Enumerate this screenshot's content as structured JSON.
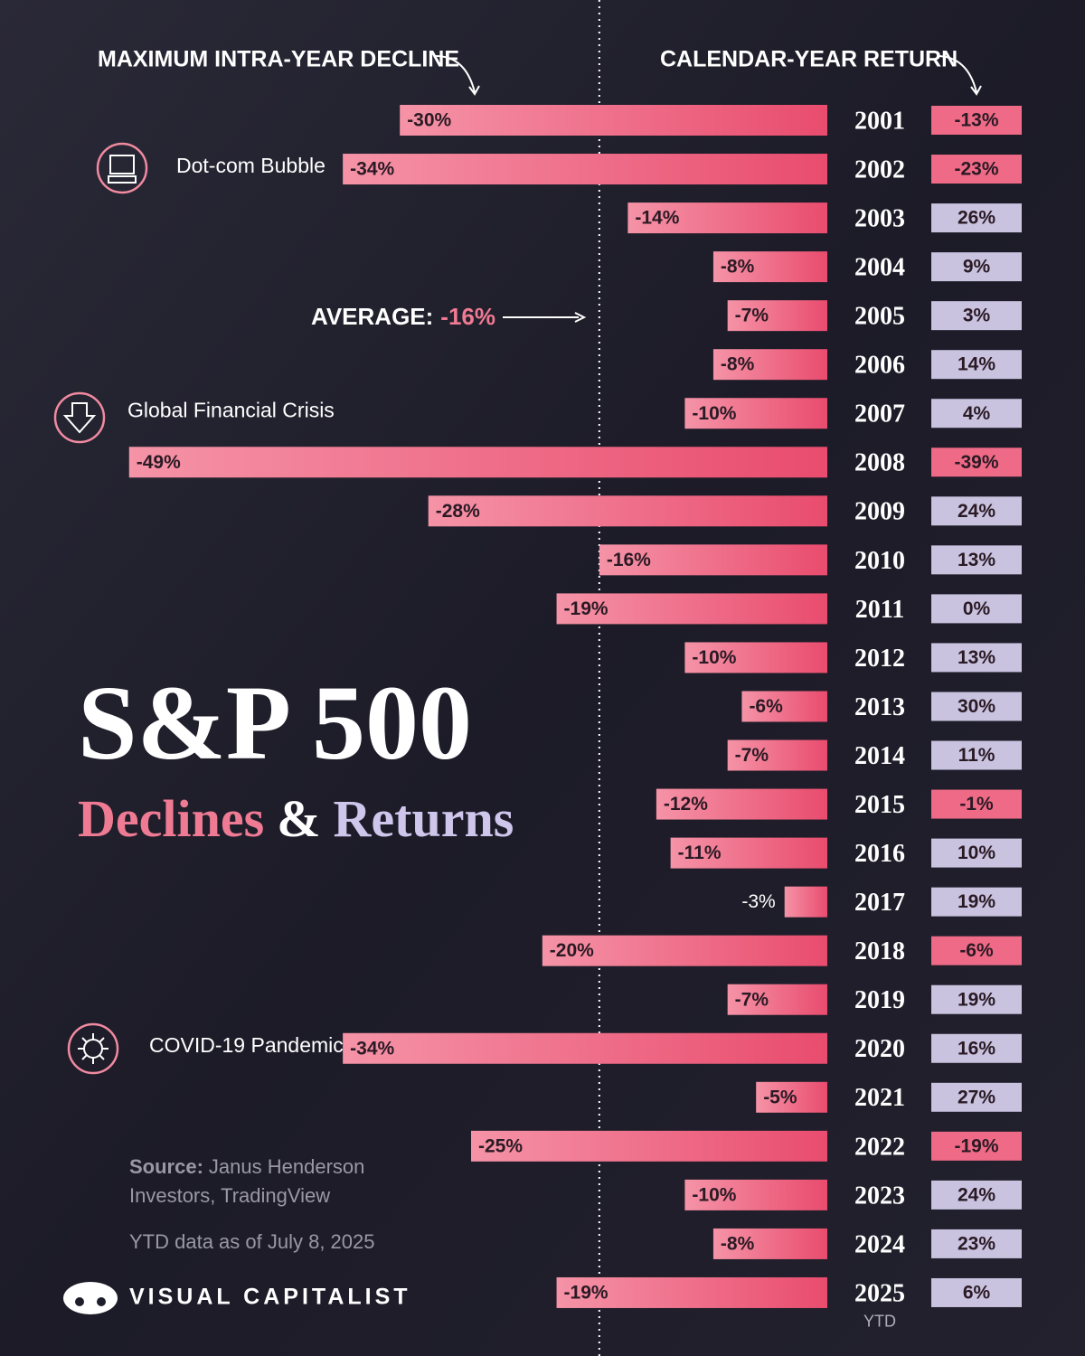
{
  "chart_data": {
    "type": "bar",
    "title": "S&P 500",
    "subtitle_parts": [
      "Declines",
      "&",
      "Returns"
    ],
    "decline_header": "MAXIMUM INTRA-YEAR DECLINE",
    "return_header": "CALENDAR-YEAR RETURN",
    "categories": [
      "2001",
      "2002",
      "2003",
      "2004",
      "2005",
      "2006",
      "2007",
      "2008",
      "2009",
      "2010",
      "2011",
      "2012",
      "2013",
      "2014",
      "2015",
      "2016",
      "2017",
      "2018",
      "2019",
      "2020",
      "2021",
      "2022",
      "2023",
      "2024",
      "2025"
    ],
    "last_category_note": "YTD",
    "xlim": [
      -50,
      0
    ],
    "series": [
      {
        "name": "Maximum Intra-Year Decline",
        "color": "#ec5a7a",
        "values": [
          -30,
          -34,
          -14,
          -8,
          -7,
          -8,
          -10,
          -49,
          -28,
          -16,
          -19,
          -10,
          -6,
          -7,
          -12,
          -11,
          -3,
          -20,
          -7,
          -34,
          -5,
          -25,
          -10,
          -8,
          -19
        ],
        "value_labels": [
          "-30%",
          "-34%",
          "-14%",
          "-8%",
          "-7%",
          "-8%",
          "-10%",
          "-49%",
          "-28%",
          "-16%",
          "-19%",
          "-10%",
          "-6%",
          "-7%",
          "-12%",
          "-11%",
          "-3%",
          "-20%",
          "-7%",
          "-34%",
          "-5%",
          "-25%",
          "-10%",
          "-8%",
          "-19%"
        ]
      },
      {
        "name": "Calendar-Year Return",
        "color": "#c9c3e0",
        "negative_color": "#ef6a86",
        "values": [
          -13,
          -23,
          26,
          9,
          3,
          14,
          4,
          -39,
          24,
          13,
          0,
          13,
          30,
          11,
          -1,
          10,
          19,
          -6,
          19,
          16,
          27,
          -19,
          24,
          23,
          6
        ],
        "value_labels": [
          "-13%",
          "-23%",
          "26%",
          "9%",
          "3%",
          "14%",
          "4%",
          "-39%",
          "24%",
          "13%",
          "0%",
          "13%",
          "30%",
          "11%",
          "-1%",
          "10%",
          "19%",
          "-6%",
          "19%",
          "16%",
          "27%",
          "-19%",
          "24%",
          "23%",
          "6%"
        ]
      }
    ],
    "average": {
      "label": "AVERAGE:",
      "value": -16,
      "value_label": "-16%"
    },
    "annotations": [
      "Dot-com Bubble",
      "Global Financial Crisis",
      "COVID-19 Pandemic"
    ],
    "source_label": "Source:",
    "source_lines": [
      "Janus Henderson",
      "Investors, TradingView"
    ],
    "note": "YTD data as of July 8, 2025",
    "brand": "VISUAL CAPITALIST"
  }
}
